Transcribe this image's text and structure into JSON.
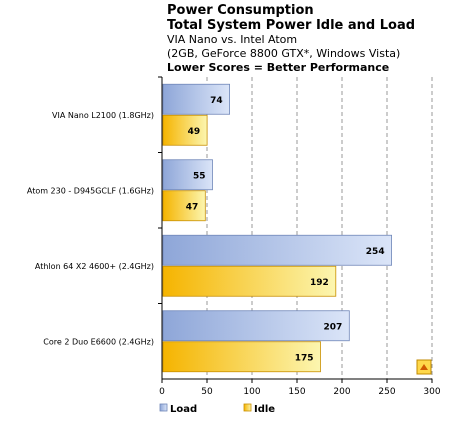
{
  "chart_data": {
    "type": "bar",
    "orientation": "horizontal",
    "title": "Power Consumption",
    "subtitle_lines": [
      "Total System Power Idle and Load",
      "VIA Nano vs. Intel Atom",
      "(2GB, GeForce 8800 GTX*, Windows Vista)"
    ],
    "note": "Lower Scores = Better Performance",
    "categories": [
      "VIA Nano L2100 (1.8GHz)",
      "Atom 230 - D945GCLF (1.6GHz)",
      "Athlon 64 X2 4600+ (2.4GHz)",
      "Core 2 Duo E6600 (2.4GHz)"
    ],
    "series": [
      {
        "name": "Load",
        "values": [
          74,
          55,
          254,
          207
        ],
        "color": "#aabfe6"
      },
      {
        "name": "Idle",
        "values": [
          49,
          47,
          192,
          175
        ],
        "color": "#f7d23a"
      }
    ],
    "xlim": [
      0,
      300
    ],
    "x_ticks": [
      "0",
      "50",
      "100",
      "150",
      "200",
      "250",
      "300"
    ],
    "grid": true,
    "legend_position": "bottom-left"
  }
}
